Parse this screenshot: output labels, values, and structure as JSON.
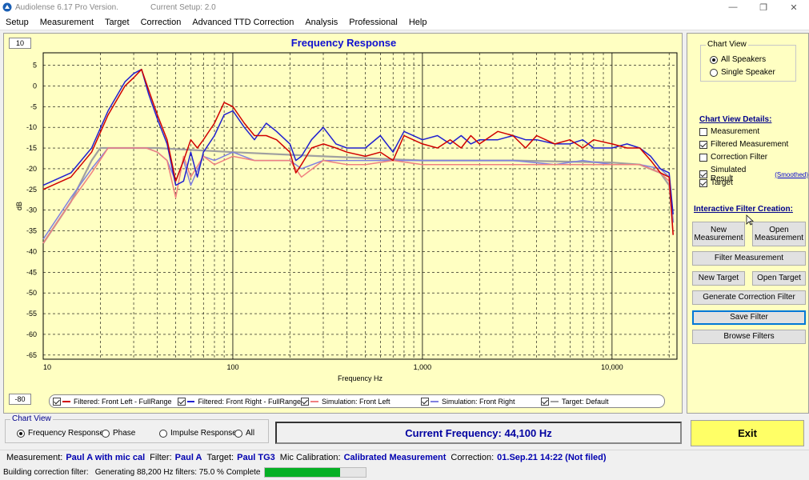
{
  "window": {
    "title": "Audiolense 6.17 Pro Version.",
    "current_setup": "Current Setup: 2.0"
  },
  "menu": [
    "Setup",
    "Measurement",
    "Target",
    "Correction",
    "Advanced TTD Correction",
    "Analysis",
    "Professional",
    "Help"
  ],
  "chart": {
    "range_top": "10",
    "range_bottom": "-80",
    "legend": [
      {
        "label": "Filtered: Front Left - FullRange",
        "color": "#d00000"
      },
      {
        "label": "Filtered: Front Right - FullRange",
        "color": "#2020d0"
      },
      {
        "label": "Simulation: Front Left",
        "color": "#f08080"
      },
      {
        "label": "Simulation: Front Right",
        "color": "#8080e0"
      },
      {
        "label": "Target: Default",
        "color": "#a0a0a0"
      }
    ]
  },
  "chart_data": {
    "type": "line",
    "title": "Frequency Response",
    "xlabel": "Frequency Hz",
    "ylabel": "dB",
    "xscale": "log",
    "xlim": [
      10,
      22000
    ],
    "ylim": [
      -66,
      8
    ],
    "xticks": [
      "10",
      "100",
      "1,000",
      "10,000"
    ],
    "yticks": [
      5,
      0,
      -5,
      -10,
      -15,
      -20,
      -25,
      -30,
      -35,
      -40,
      -45,
      -50,
      -55,
      -60,
      -65
    ],
    "grid": true,
    "series": [
      {
        "name": "Filtered: Front Left - FullRange",
        "color": "#d00000",
        "x": [
          10,
          14,
          18,
          22,
          27,
          30,
          33,
          36,
          40,
          45,
          50,
          55,
          60,
          65,
          70,
          80,
          90,
          100,
          115,
          130,
          150,
          170,
          200,
          215,
          230,
          260,
          300,
          350,
          400,
          500,
          600,
          700,
          800,
          1000,
          1200,
          1400,
          1600,
          1800,
          2000,
          2500,
          3000,
          3500,
          4000,
          5000,
          6000,
          7000,
          8000,
          10000,
          12000,
          14000,
          16000,
          18000,
          20000,
          21000
        ],
        "y": [
          -25,
          -22,
          -16,
          -7,
          0,
          2,
          4,
          -1,
          -7,
          -13,
          -23,
          -18,
          -13,
          -15,
          -13,
          -9,
          -4,
          -5,
          -9,
          -12,
          -12,
          -13,
          -16,
          -21,
          -19,
          -15,
          -14,
          -15,
          -16,
          -17,
          -16,
          -18,
          -12,
          -14,
          -15,
          -13,
          -15,
          -12,
          -14,
          -11,
          -12,
          -15,
          -12,
          -14,
          -13,
          -15,
          -13,
          -14,
          -15,
          -15,
          -18,
          -21,
          -22,
          -36
        ]
      },
      {
        "name": "Filtered: Front Right - FullRange",
        "color": "#2020d0",
        "x": [
          10,
          14,
          18,
          22,
          27,
          30,
          33,
          36,
          40,
          45,
          50,
          55,
          60,
          65,
          70,
          80,
          90,
          100,
          115,
          130,
          150,
          170,
          200,
          215,
          230,
          260,
          300,
          350,
          400,
          500,
          600,
          700,
          800,
          1000,
          1200,
          1400,
          1600,
          1800,
          2000,
          2500,
          3000,
          3500,
          4000,
          5000,
          6000,
          7000,
          8000,
          10000,
          12000,
          14000,
          16000,
          18000,
          20000,
          21000
        ],
        "y": [
          -24,
          -21,
          -15,
          -6,
          1,
          3,
          4,
          -2,
          -8,
          -14,
          -24,
          -23,
          -16,
          -22,
          -16,
          -12,
          -7,
          -6,
          -10,
          -13,
          -9,
          -11,
          -14,
          -18,
          -17,
          -13,
          -10,
          -14,
          -15,
          -15,
          -12,
          -16,
          -11,
          -13,
          -12,
          -14,
          -12,
          -14,
          -13,
          -13,
          -12,
          -13,
          -13,
          -14,
          -14,
          -13,
          -15,
          -15,
          -14,
          -15,
          -17,
          -20,
          -21,
          -31
        ]
      },
      {
        "name": "Simulation: Front Left",
        "color": "#f08080",
        "x": [
          10,
          14,
          18,
          22,
          27,
          30,
          35,
          40,
          45,
          50,
          55,
          60,
          70,
          80,
          100,
          130,
          170,
          200,
          230,
          300,
          400,
          500,
          700,
          1000,
          1500,
          2000,
          3000,
          5000,
          7000,
          10000,
          14000,
          18000,
          20000,
          21000
        ],
        "y": [
          -38,
          -28,
          -21,
          -15,
          -15,
          -15,
          -15,
          -16,
          -18,
          -27,
          -17,
          -22,
          -17,
          -19,
          -17,
          -18,
          -18,
          -18,
          -22,
          -18,
          -19,
          -19,
          -18,
          -19,
          -19,
          -19,
          -19,
          -19,
          -19,
          -19,
          -19,
          -21,
          -23,
          -36
        ]
      },
      {
        "name": "Simulation: Front Right",
        "color": "#8080e0",
        "x": [
          10,
          14,
          18,
          22,
          27,
          30,
          35,
          40,
          45,
          50,
          55,
          60,
          70,
          80,
          100,
          130,
          170,
          200,
          230,
          300,
          400,
          500,
          700,
          1000,
          1500,
          2000,
          3000,
          5000,
          7000,
          10000,
          14000,
          18000,
          20000,
          21000
        ],
        "y": [
          -37,
          -27,
          -20,
          -15,
          -15,
          -15,
          -15,
          -16,
          -18,
          -23,
          -18,
          -24,
          -17,
          -18,
          -16,
          -18,
          -18,
          -18,
          -20,
          -18,
          -18,
          -18,
          -18,
          -18,
          -18,
          -18,
          -18,
          -19,
          -18,
          -19,
          -19,
          -20,
          -22,
          -33
        ]
      },
      {
        "name": "Target: Default",
        "color": "#a0a0a0",
        "x": [
          10,
          14,
          18,
          20,
          25,
          40,
          100,
          300,
          1000,
          3000,
          10000,
          14000,
          18000,
          20000,
          21000
        ],
        "y": [
          -38,
          -28,
          -18,
          -15,
          -15,
          -15,
          -16,
          -17,
          -18,
          -18,
          -18.5,
          -19,
          -21,
          -24,
          -33
        ]
      }
    ]
  },
  "chart_view": {
    "heading": "Chart View",
    "options": [
      "All Speakers",
      "Single Speaker"
    ],
    "selected": 0
  },
  "chart_view_details": {
    "heading": "Chart View Details:",
    "items": [
      {
        "label": "Measurement",
        "checked": false
      },
      {
        "label": "Filtered Measurement",
        "checked": true
      },
      {
        "label": "Correction Filter",
        "checked": false
      },
      {
        "label": "Simulated Result",
        "checked": true
      },
      {
        "label": "Target",
        "checked": true
      }
    ],
    "smoothed": "(Smoothed)"
  },
  "interactive": {
    "heading": "Interactive Filter Creation:",
    "new_measurement": "New Measurement",
    "open_measurement": "Open Measurement",
    "filter_measurement": "Filter Measurement",
    "new_target": "New Target",
    "open_target": "Open Target",
    "generate": "Generate Correction Filter",
    "save": "Save Filter",
    "browse": "Browse Filters"
  },
  "bottom_view": {
    "heading": "Chart View",
    "options": [
      "Frequency Response",
      "Phase",
      "Impulse Response",
      "All"
    ],
    "selected": 0
  },
  "current_frequency": "Current Frequency: 44,100 Hz",
  "exit_label": "Exit",
  "status": {
    "measurement_label": "Measurement:",
    "measurement": "Paul A with mic cal",
    "filter_label": "Filter:",
    "filter": "Paul A",
    "target_label": "Target:",
    "target": "Paul TG3",
    "mic_label": "Mic Calibration:",
    "mic": "Calibrated Measurement",
    "correction_label": "Correction:",
    "correction": "01.Sep.21 14:22 (Not filed)"
  },
  "progress": {
    "label1": "Building correction filter:",
    "label2": "Generating 88,200 Hz filters: 75.0 % Complete",
    "fraction": 0.75
  }
}
